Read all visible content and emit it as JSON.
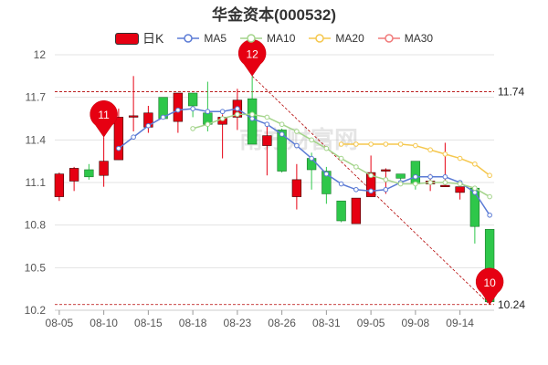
{
  "title": "华金资本(000532)",
  "legend": [
    {
      "key": "k",
      "label": "日K",
      "color": "#e60012"
    },
    {
      "key": "ma5",
      "label": "MA5",
      "color": "#5b7bd5"
    },
    {
      "key": "ma10",
      "label": "MA10",
      "color": "#a3d48a"
    },
    {
      "key": "ma20",
      "label": "MA20",
      "color": "#f5c74d"
    },
    {
      "key": "ma30",
      "label": "MA30",
      "color": "#f07a7a"
    }
  ],
  "watermark": "南方财富网",
  "chart_data": {
    "type": "candlestick",
    "ylim": [
      10.2,
      12.0
    ],
    "yticks": [
      "10.2",
      "10.5",
      "10.8",
      "11.1",
      "11.4",
      "11.7",
      "12"
    ],
    "xticks": [
      {
        "index": 0,
        "label": "08-05"
      },
      {
        "index": 3,
        "label": "08-10"
      },
      {
        "index": 6,
        "label": "08-15"
      },
      {
        "index": 9,
        "label": "08-18"
      },
      {
        "index": 12,
        "label": "08-23"
      },
      {
        "index": 15,
        "label": "08-26"
      },
      {
        "index": 18,
        "label": "08-31"
      },
      {
        "index": 21,
        "label": "09-05"
      },
      {
        "index": 24,
        "label": "09-08"
      },
      {
        "index": 27,
        "label": "09-14"
      }
    ],
    "up_color": "#e60012",
    "down_color": "#2ec74a",
    "candles": [
      {
        "o": 11.0,
        "c": 11.16,
        "h": 11.17,
        "l": 10.97
      },
      {
        "o": 11.11,
        "c": 11.2,
        "h": 11.21,
        "l": 11.04
      },
      {
        "o": 11.19,
        "c": 11.14,
        "h": 11.23,
        "l": 11.12
      },
      {
        "o": 11.15,
        "c": 11.25,
        "h": 11.42,
        "l": 11.07
      },
      {
        "o": 11.26,
        "c": 11.56,
        "h": 11.62,
        "l": 11.26
      },
      {
        "o": 11.56,
        "c": 11.57,
        "h": 11.85,
        "l": 11.46
      },
      {
        "o": 11.49,
        "c": 11.59,
        "h": 11.64,
        "l": 11.45
      },
      {
        "o": 11.7,
        "c": 11.55,
        "h": 11.7,
        "l": 11.55
      },
      {
        "o": 11.53,
        "c": 11.73,
        "h": 11.73,
        "l": 11.45
      },
      {
        "o": 11.73,
        "c": 11.64,
        "h": 11.73,
        "l": 11.56
      },
      {
        "o": 11.59,
        "c": 11.51,
        "h": 11.81,
        "l": 11.46
      },
      {
        "o": 11.51,
        "c": 11.56,
        "h": 11.58,
        "l": 11.27
      },
      {
        "o": 11.56,
        "c": 11.68,
        "h": 11.76,
        "l": 11.47
      },
      {
        "o": 11.69,
        "c": 11.37,
        "h": 11.85,
        "l": 11.37
      },
      {
        "o": 11.36,
        "c": 11.43,
        "h": 11.51,
        "l": 11.15
      },
      {
        "o": 11.47,
        "c": 11.18,
        "h": 11.48,
        "l": 11.17
      },
      {
        "o": 11.0,
        "c": 11.12,
        "h": 11.23,
        "l": 10.91
      },
      {
        "o": 11.27,
        "c": 11.19,
        "h": 11.31,
        "l": 11.05
      },
      {
        "o": 11.18,
        "c": 11.02,
        "h": 11.21,
        "l": 10.95
      },
      {
        "o": 10.97,
        "c": 10.83,
        "h": 10.97,
        "l": 10.82
      },
      {
        "o": 10.81,
        "c": 10.99,
        "h": 10.99,
        "l": 10.81
      },
      {
        "o": 11.0,
        "c": 11.17,
        "h": 11.29,
        "l": 11.0
      },
      {
        "o": 11.18,
        "c": 11.19,
        "h": 11.2,
        "l": 11.02
      },
      {
        "o": 11.16,
        "c": 11.13,
        "h": 11.16,
        "l": 11.08
      },
      {
        "o": 11.25,
        "c": 11.09,
        "h": 11.25,
        "l": 11.05
      },
      {
        "o": 11.09,
        "c": 11.11,
        "h": 11.16,
        "l": 11.04
      },
      {
        "o": 11.07,
        "c": 11.08,
        "h": 11.38,
        "l": 11.07
      },
      {
        "o": 11.03,
        "c": 11.07,
        "h": 11.07,
        "l": 10.98
      },
      {
        "o": 11.06,
        "c": 10.79,
        "h": 11.06,
        "l": 10.67
      },
      {
        "o": 10.77,
        "c": 10.26,
        "h": 10.77,
        "l": 10.24
      }
    ],
    "ma5": [
      null,
      null,
      null,
      null,
      11.34,
      11.42,
      11.5,
      11.56,
      11.61,
      11.62,
      11.6,
      11.6,
      11.62,
      11.55,
      11.51,
      11.44,
      11.36,
      11.27,
      11.16,
      11.09,
      11.05,
      11.04,
      11.05,
      11.1,
      11.14,
      11.14,
      11.14,
      11.1,
      11.03,
      10.87
    ],
    "ma10": [
      null,
      null,
      null,
      null,
      null,
      null,
      null,
      null,
      null,
      11.48,
      11.51,
      11.55,
      11.58,
      11.58,
      11.56,
      11.51,
      11.46,
      11.4,
      11.34,
      11.27,
      11.21,
      11.15,
      11.12,
      11.09,
      11.09,
      11.1,
      11.1,
      11.09,
      11.06,
      11.0
    ],
    "ma20": [
      null,
      null,
      null,
      null,
      null,
      null,
      null,
      null,
      null,
      null,
      null,
      null,
      null,
      null,
      null,
      null,
      null,
      null,
      null,
      11.37,
      11.37,
      11.37,
      11.37,
      11.37,
      11.36,
      11.33,
      11.3,
      11.27,
      11.23,
      11.15
    ],
    "ma30": [],
    "reference_lines": [
      {
        "label": "11.74",
        "value": 11.74
      },
      {
        "label": "10.24",
        "value": 10.24
      }
    ],
    "markers": [
      {
        "index": 3,
        "price": 11.42,
        "text": "11"
      },
      {
        "index": 13,
        "price": 11.85,
        "text": "12"
      },
      {
        "index": 29,
        "price": 10.24,
        "text": "10"
      }
    ]
  }
}
